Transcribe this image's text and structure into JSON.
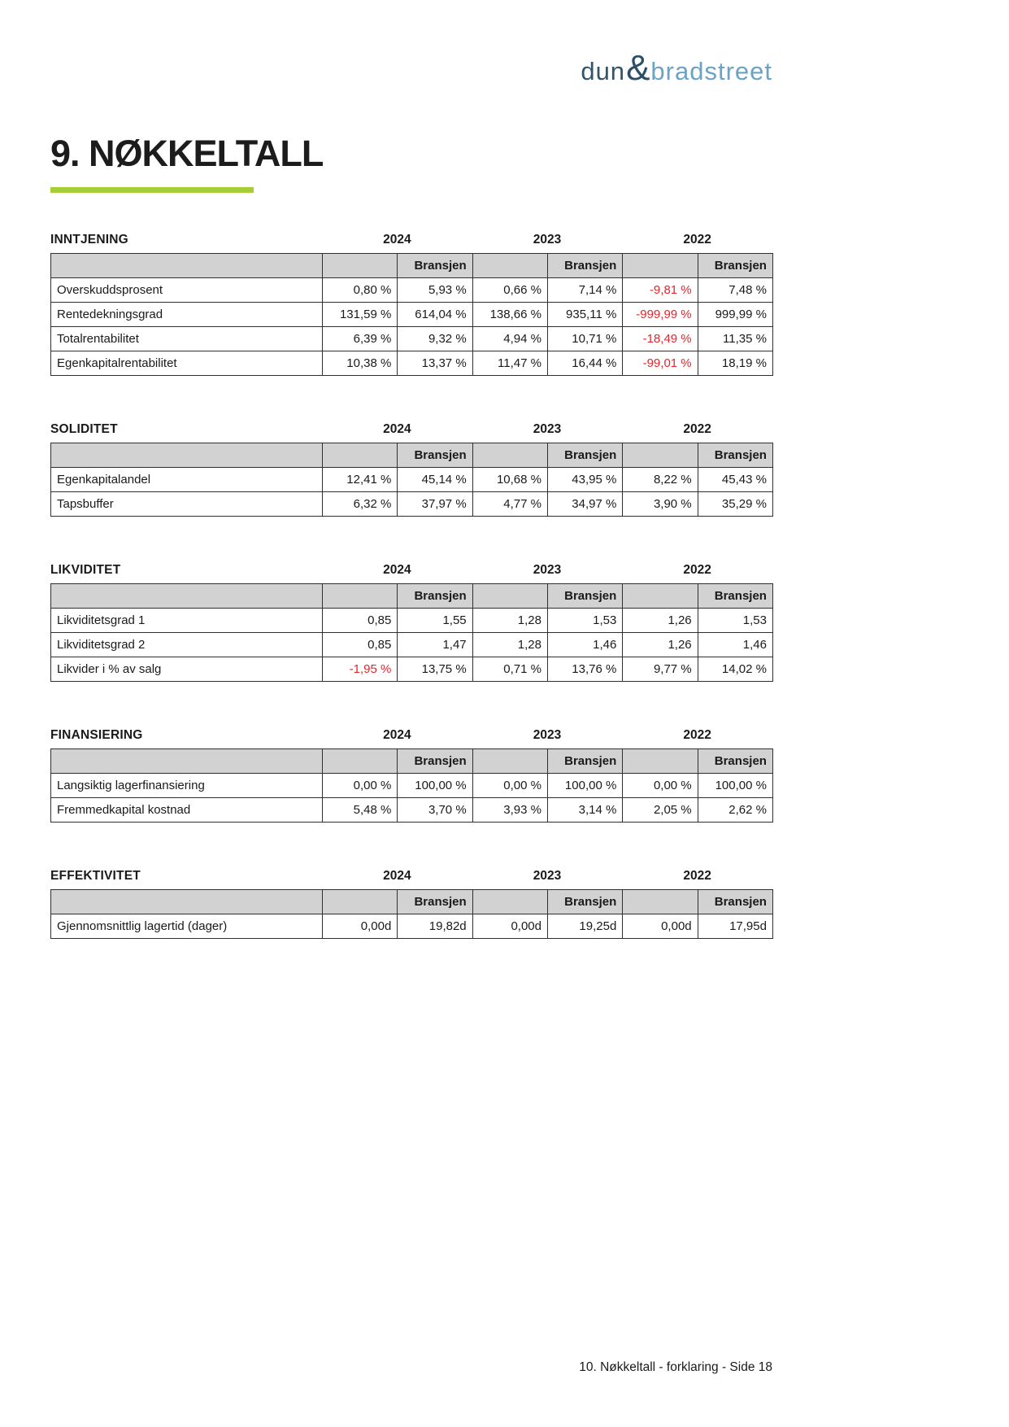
{
  "logo": {
    "dun": "dun",
    "amp": "&",
    "bradstreet": "bradstreet"
  },
  "page_title": "9. NØKKELTALL",
  "years": [
    "2024",
    "2023",
    "2022"
  ],
  "bransjen_label": "Bransjen",
  "accent_colors": {
    "underline_green": "#a7ce38",
    "negative_red": "#e0282d",
    "header_gray": "#d2d2d2",
    "logo_dark_blue": "#31566b",
    "logo_light_blue": "#6ba3c4"
  },
  "sections": [
    {
      "title": "INNTJENING",
      "rows": [
        {
          "label": "Overskuddsprosent",
          "values": [
            "0,80 %",
            "5,93 %",
            "0,66 %",
            "7,14 %",
            "-9,81 %",
            "7,48 %"
          ]
        },
        {
          "label": "Rentedekningsgrad",
          "values": [
            "131,59 %",
            "614,04 %",
            "138,66 %",
            "935,11 %",
            "-999,99 %",
            "999,99 %"
          ]
        },
        {
          "label": "Totalrentabilitet",
          "values": [
            "6,39 %",
            "9,32 %",
            "4,94 %",
            "10,71 %",
            "-18,49 %",
            "11,35 %"
          ]
        },
        {
          "label": "Egenkapitalrentabilitet",
          "values": [
            "10,38 %",
            "13,37 %",
            "11,47 %",
            "16,44 %",
            "-99,01 %",
            "18,19 %"
          ]
        }
      ]
    },
    {
      "title": "SOLIDITET",
      "rows": [
        {
          "label": "Egenkapitalandel",
          "values": [
            "12,41 %",
            "45,14 %",
            "10,68 %",
            "43,95 %",
            "8,22 %",
            "45,43 %"
          ]
        },
        {
          "label": "Tapsbuffer",
          "values": [
            "6,32 %",
            "37,97 %",
            "4,77 %",
            "34,97 %",
            "3,90 %",
            "35,29 %"
          ]
        }
      ]
    },
    {
      "title": "LIKVIDITET",
      "rows": [
        {
          "label": "Likviditetsgrad 1",
          "values": [
            "0,85",
            "1,55",
            "1,28",
            "1,53",
            "1,26",
            "1,53"
          ]
        },
        {
          "label": "Likviditetsgrad 2",
          "values": [
            "0,85",
            "1,47",
            "1,28",
            "1,46",
            "1,26",
            "1,46"
          ]
        },
        {
          "label": "Likvider i % av salg",
          "values": [
            "-1,95 %",
            "13,75 %",
            "0,71 %",
            "13,76 %",
            "9,77 %",
            "14,02 %"
          ]
        }
      ]
    },
    {
      "title": "FINANSIERING",
      "rows": [
        {
          "label": "Langsiktig lagerfinansiering",
          "values": [
            "0,00 %",
            "100,00 %",
            "0,00 %",
            "100,00 %",
            "0,00 %",
            "100,00 %"
          ]
        },
        {
          "label": "Fremmedkapital kostnad",
          "values": [
            "5,48 %",
            "3,70 %",
            "3,93 %",
            "3,14 %",
            "2,05 %",
            "2,62 %"
          ]
        }
      ]
    },
    {
      "title": "EFFEKTIVITET",
      "rows": [
        {
          "label": "Gjennomsnittlig lagertid (dager)",
          "values": [
            "0,00d",
            "19,82d",
            "0,00d",
            "19,25d",
            "0,00d",
            "17,95d"
          ]
        }
      ]
    }
  ],
  "footer": "10. Nøkkeltall - forklaring - Side 18"
}
